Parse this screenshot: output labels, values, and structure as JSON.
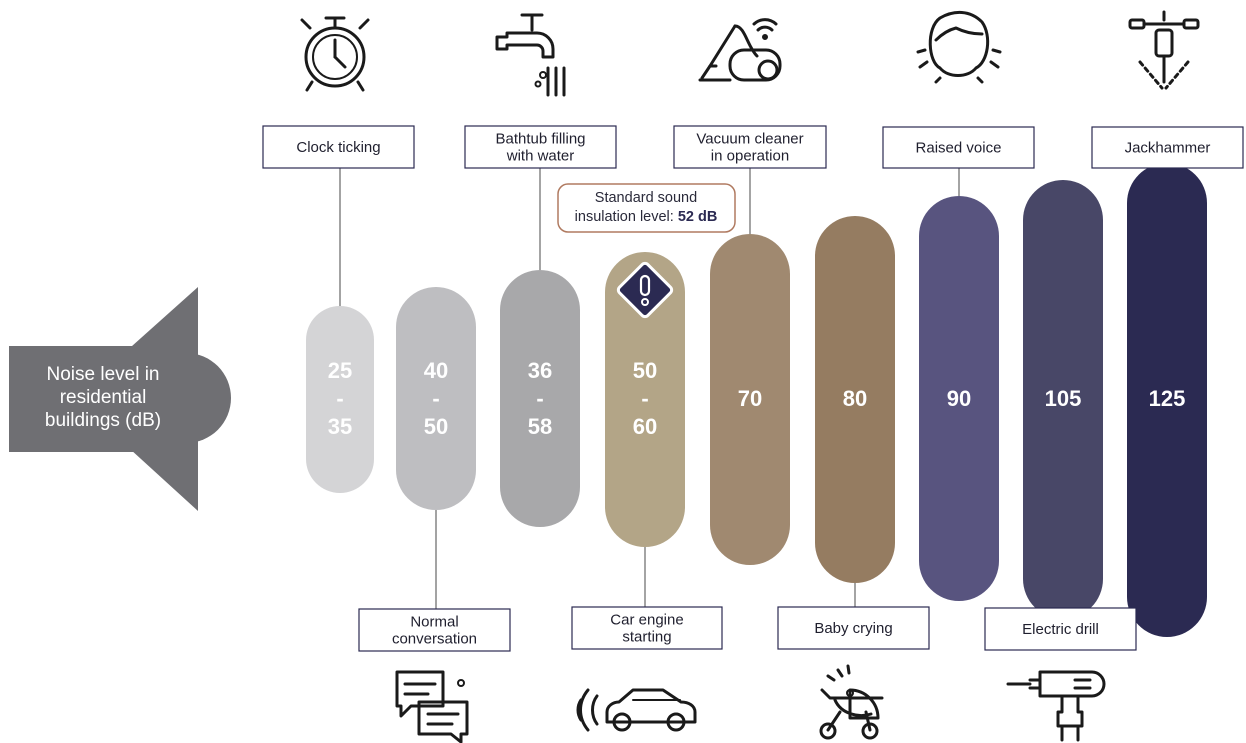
{
  "speaker": {
    "lines": [
      "Noise level in",
      "residential",
      "buildings (dB)"
    ]
  },
  "note": {
    "lines": [
      "Standard sound",
      "insulation level:"
    ],
    "value": "52 dB"
  },
  "levels": [
    {
      "lines": [
        "25",
        "-",
        "35"
      ],
      "color": "#d4d4d6",
      "label": [
        "Clock ticking"
      ],
      "icon": "stopwatch-icon"
    },
    {
      "lines": [
        "40",
        "-",
        "50"
      ],
      "color": "#bebec1",
      "label": [
        "Normal",
        "conversation"
      ],
      "icon": "chat-bubbles-icon"
    },
    {
      "lines": [
        "36",
        "-",
        "58"
      ],
      "color": "#a8a8aa",
      "label": [
        "Bathtub filling",
        "with water"
      ],
      "icon": "faucet-icon"
    },
    {
      "lines": [
        "50",
        "-",
        "60"
      ],
      "color": "#b3a587",
      "label": [
        "Car engine",
        "starting"
      ],
      "icon": "car-icon",
      "warning": true
    },
    {
      "lines": [
        "70"
      ],
      "color": "#a08970",
      "label": [
        "Vacuum cleaner",
        "in operation"
      ],
      "icon": "vacuum-cleaner-icon"
    },
    {
      "lines": [
        "80"
      ],
      "color": "#957c61",
      "label": [
        "Baby crying"
      ],
      "icon": "baby-stroller-icon"
    },
    {
      "lines": [
        "90"
      ],
      "color": "#58547f",
      "label": [
        "Raised voice"
      ],
      "icon": "face-icon"
    },
    {
      "lines": [
        "105"
      ],
      "color": "#484767",
      "label": [
        "Electric drill"
      ],
      "icon": "drill-icon"
    },
    {
      "lines": [
        "125"
      ],
      "color": "#2b2a52",
      "label": [
        "Jackhammer"
      ],
      "icon": "jackhammer-icon"
    }
  ]
}
